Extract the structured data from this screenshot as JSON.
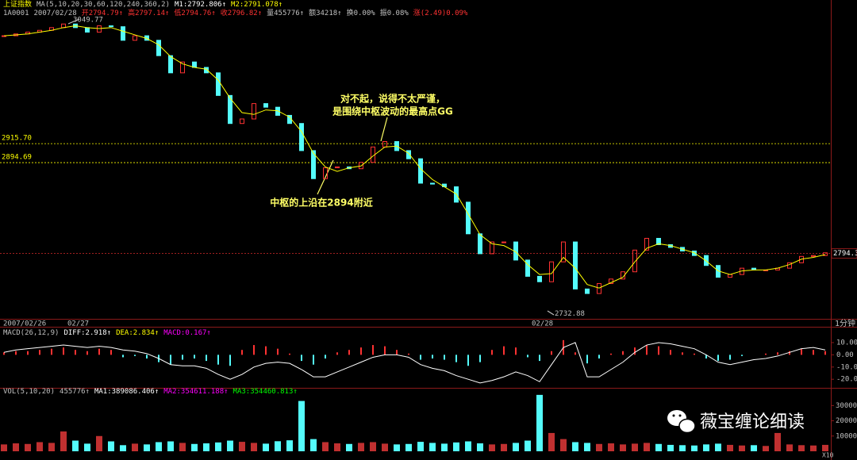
{
  "chart_data": [
    {
      "type": "candlestick",
      "header": [
        {
          "text": "上证指数",
          "color": "#ffff00"
        },
        {
          "text": "MA(5,10,20,30,60,120,240,360,2)",
          "color": "#c0c0c0"
        },
        {
          "text": "M1:2792.806↑",
          "color": "#ffffff"
        },
        {
          "text": "M2:2791.078↑",
          "color": "#ffff00"
        }
      ],
      "info": [
        {
          "text": "1A0001",
          "color": "#c0c0c0"
        },
        {
          "text": "2007/02/28",
          "color": "#c0c0c0"
        },
        {
          "text": "开2794.79↑",
          "color": "#ff3232"
        },
        {
          "text": "高2797.14↑",
          "color": "#ff3232"
        },
        {
          "text": "低2794.76↑",
          "color": "#ff3232"
        },
        {
          "text": "收2796.82↑",
          "color": "#ff3232"
        },
        {
          "text": "量455776↑",
          "color": "#c0c0c0"
        },
        {
          "text": "额34218↑",
          "color": "#c0c0c0"
        },
        {
          "text": "换0.00%",
          "color": "#c0c0c0"
        },
        {
          "text": "振0.08%",
          "color": "#c0c0c0"
        },
        {
          "text": "涨(2.49)0.09%",
          "color": "#ff3232"
        }
      ],
      "categories": [
        "2007/02/26",
        null,
        null,
        null,
        null,
        null,
        "02/27",
        null,
        null,
        null,
        null,
        null,
        null,
        null,
        null,
        null,
        null,
        null,
        null,
        null,
        null,
        null,
        null,
        null,
        null,
        null,
        null,
        null,
        null,
        null,
        null,
        null,
        null,
        null,
        null,
        null,
        null,
        null,
        null,
        null,
        null,
        null,
        null,
        null,
        null,
        "02/28",
        null,
        null,
        null,
        null,
        null,
        null,
        null,
        null,
        null,
        null,
        null,
        null,
        null,
        null,
        null,
        null,
        null,
        null,
        null,
        null,
        null,
        null,
        null,
        null
      ],
      "values": [
        3035,
        3037,
        3039,
        3041,
        3044,
        3048,
        3044,
        3039,
        3046,
        3045,
        3030,
        3035,
        3030,
        3013,
        2994,
        3006,
        3000,
        2994,
        2969,
        2938,
        2943,
        2960,
        2956,
        2947,
        2938,
        2908,
        2877,
        2889,
        2890,
        2888,
        2895,
        2912,
        2918,
        2908,
        2899,
        2872,
        2871,
        2868,
        2851,
        2816,
        2794,
        2807,
        2807,
        2787,
        2769,
        2763,
        2785,
        2807,
        2755,
        2750,
        2761,
        2766,
        2774,
        2798,
        2811,
        2804,
        2801,
        2797,
        2792,
        2781,
        2768,
        2771,
        2778,
        2776,
        2776,
        2778,
        2784,
        2791,
        2792,
        2795
      ],
      "color_up": "#ff3232",
      "color_down": "#54fcfc",
      "ma_values": [
        3035,
        3036,
        3037,
        3039,
        3041,
        3044,
        3046,
        3044,
        3043,
        3044,
        3040,
        3036,
        3032,
        3025,
        3012,
        3004,
        3000,
        2998,
        2986,
        2966,
        2950,
        2948,
        2953,
        2952,
        2945,
        2929,
        2905,
        2890,
        2885,
        2889,
        2891,
        2902,
        2912,
        2913,
        2905,
        2888,
        2876,
        2868,
        2860,
        2838,
        2815,
        2805,
        2803,
        2796,
        2782,
        2771,
        2772,
        2790,
        2778,
        2760,
        2756,
        2762,
        2768,
        2785,
        2800,
        2805,
        2803,
        2799,
        2795,
        2786,
        2775,
        2771,
        2775,
        2776,
        2776,
        2778,
        2782,
        2788,
        2790,
        2793
      ],
      "ma_color": "#ffff00",
      "ylim": [
        2722,
        3057
      ],
      "yticks": [
        {
          "value": 2915.7,
          "label": "2915.70"
        },
        2894.69
      ],
      "grid_color": "#ffff00",
      "last_close": 2794.3,
      "high": 3049.77,
      "low": 2732.88,
      "period": "1分钟",
      "annotations": [
        "对不起，说得不太严谨，",
        "是围绕中枢波动的最高点GG",
        "中枢的上沿在2894附近"
      ]
    },
    {
      "type": "macd",
      "header": [
        {
          "text": "MACD(26,12,9)",
          "color": "#c0c0c0"
        },
        {
          "text": "DIFF:2.918↑",
          "color": "#ffffff"
        },
        {
          "text": "DEA:2.834↑",
          "color": "#ffff00"
        },
        {
          "text": "MACD:0.167↑",
          "color": "#ff00ff"
        }
      ],
      "values": [
        2,
        3,
        3,
        4,
        5,
        6,
        4,
        3,
        5,
        4,
        -2,
        -1,
        -3,
        -6,
        -8,
        -4,
        -3,
        -5,
        -8,
        -9,
        4,
        8,
        7,
        5,
        1,
        -5,
        -8,
        -3,
        2,
        4,
        6,
        8,
        7,
        4,
        1,
        -4,
        -3,
        -4,
        -6,
        -9,
        -6,
        4,
        7,
        6,
        -2,
        -5,
        3,
        12,
        2,
        -7,
        -3,
        1,
        3,
        6,
        8,
        7,
        4,
        2,
        1,
        -3,
        -5,
        -4,
        -1,
        0,
        1,
        2,
        3,
        5,
        4,
        3
      ],
      "line_values": [
        2,
        4,
        5,
        6,
        7,
        8,
        7,
        6,
        7,
        6,
        4,
        3,
        1,
        -3,
        -8,
        -9,
        -9,
        -11,
        -16,
        -20,
        -16,
        -10,
        -7,
        -6,
        -7,
        -12,
        -18,
        -18,
        -14,
        -10,
        -6,
        -2,
        0,
        0,
        -2,
        -8,
        -11,
        -13,
        -17,
        -20,
        -23,
        -21,
        -18,
        -14,
        -17,
        -22,
        -8,
        6,
        10,
        -18,
        -18,
        -12,
        -6,
        2,
        8,
        10,
        9,
        7,
        5,
        0,
        -6,
        -8,
        -6,
        -4,
        -3,
        -1,
        2,
        5,
        6,
        4
      ],
      "line_color": "#ffffff",
      "color_up": "#ff3232",
      "color_down": "#54fcfc",
      "ylim": [
        -27,
        21
      ],
      "yticks": [
        {
          "value": 10,
          "label": "10.00"
        },
        {
          "value": 0,
          "label": "0.00"
        },
        {
          "value": -10,
          "label": "-10.00"
        },
        {
          "value": -20,
          "label": "-20.00"
        }
      ]
    },
    {
      "type": "volume",
      "header": [
        {
          "text": "VOL(5,10,20)",
          "color": "#c0c0c0"
        },
        {
          "text": "455776↑",
          "color": "#c0c0c0"
        },
        {
          "text": "MA1:389086.406↑",
          "color": "#ffffff"
        },
        {
          "text": "MA2:354611.188↑",
          "color": "#ff00ff"
        },
        {
          "text": "MA3:354460.813↑",
          "color": "#00ff00"
        }
      ],
      "values": [
        45000,
        52000,
        48000,
        60000,
        55000,
        130000,
        70000,
        50000,
        100000,
        65000,
        40000,
        50000,
        45000,
        60000,
        65000,
        55000,
        48000,
        52000,
        58000,
        70000,
        62000,
        55000,
        50000,
        66000,
        72000,
        330000,
        80000,
        60000,
        52000,
        48000,
        55000,
        60000,
        50000,
        45000,
        48000,
        62000,
        55000,
        50000,
        58000,
        65000,
        52000,
        45000,
        48000,
        55000,
        70000,
        370000,
        120000,
        80000,
        60000,
        55000,
        48000,
        52000,
        45000,
        50000,
        55000,
        48000,
        42000,
        40000,
        38000,
        45000,
        50000,
        42000,
        38000,
        40000,
        35000,
        120000,
        45000,
        40000,
        38000,
        42000
      ],
      "color_up": "#c03030",
      "color_down": "#54fcfc",
      "ylim": [
        0,
        385000
      ],
      "yticks": [
        300000,
        200000,
        100000
      ],
      "scale_label": "X10"
    }
  ],
  "watermark": "薇宝缠论细读"
}
